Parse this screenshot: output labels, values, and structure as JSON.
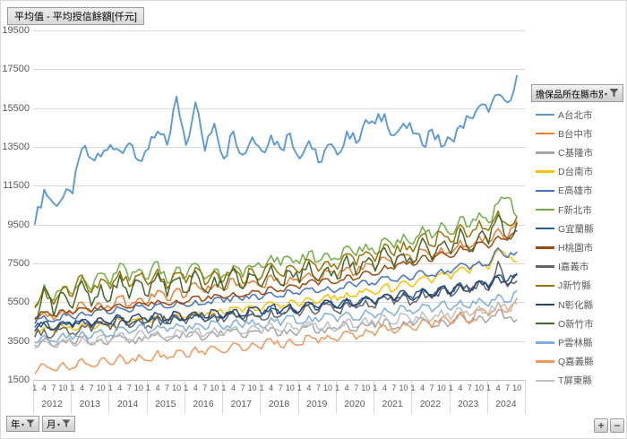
{
  "title_button": {
    "label": "平均值 - 平均授信餘額[仟元]"
  },
  "legend": {
    "filter_button_label": "擔保品所在縣市別"
  },
  "field_buttons": {
    "year_label": "年",
    "month_label": "月"
  },
  "detail_buttons": {
    "plus_label": "+",
    "minus_label": "−"
  },
  "colors": {
    "grid": "#d9d9d9",
    "axis": "#bfbfbf",
    "labels": "#595959"
  },
  "chart_data": {
    "type": "line",
    "title": "平均值 - 平均授信餘額[仟元]",
    "ylabel": "平均授信餘額[仟元]",
    "ylim": [
      1500,
      19500
    ],
    "ytick_step": 2000,
    "grid": true,
    "legend_position": "right",
    "x": {
      "years": [
        2012,
        2013,
        2014,
        2015,
        2016,
        2017,
        2018,
        2019,
        2020,
        2021,
        2022,
        2023,
        2024
      ],
      "month_ticks": [
        1,
        4,
        7,
        10
      ],
      "note": "values sampled at months 1,4,7,10 of each year"
    },
    "series": [
      {
        "name": "A台北市",
        "color": "#5B9BD5",
        "jitter": 420,
        "values": [
          9500,
          11300,
          10600,
          10900,
          11100,
          13400,
          12900,
          13000,
          13600,
          13300,
          13700,
          12800,
          13400,
          14300,
          13600,
          16100,
          13600,
          15800,
          13300,
          14700,
          12900,
          14300,
          13100,
          14000,
          13300,
          14100,
          13400,
          14200,
          12900,
          13800,
          12700,
          13600,
          13100,
          14300,
          13700,
          14900,
          14700,
          15200,
          14100,
          14700,
          14200,
          13600,
          14400,
          13500,
          13900,
          14600,
          15000,
          15600,
          15300,
          16200,
          15800,
          17200
        ]
      },
      {
        "name": "B台中市",
        "color": "#ED7D31",
        "jitter": 280,
        "values": [
          4400,
          5000,
          4600,
          5100,
          4900,
          5500,
          5000,
          5400,
          5200,
          5800,
          5300,
          5700,
          5500,
          6100,
          5600,
          6200,
          5800,
          6500,
          6000,
          6400,
          6100,
          6700,
          6200,
          6600,
          6300,
          6900,
          6400,
          6800,
          6500,
          7000,
          6600,
          7100,
          6800,
          7300,
          7000,
          7500,
          7200,
          7800,
          7400,
          7900,
          7600,
          8200,
          7800,
          8300,
          8000,
          8700,
          8300,
          8900,
          8600,
          9300,
          8800,
          9700
        ]
      },
      {
        "name": "C基隆市",
        "color": "#A5A5A5",
        "jitter": 280,
        "values": [
          3300,
          3600,
          3200,
          3500,
          3400,
          3700,
          3300,
          3600,
          3500,
          3800,
          3400,
          3700,
          3600,
          3900,
          3500,
          3800,
          3700,
          4000,
          3600,
          3900,
          3800,
          4100,
          3700,
          4000,
          3900,
          4200,
          3800,
          4100,
          4000,
          4300,
          3900,
          4200,
          4100,
          4400,
          4000,
          4300,
          4200,
          4600,
          4100,
          4500,
          4300,
          4700,
          4200,
          4600,
          4400,
          4900,
          4400,
          4800,
          4600,
          5100,
          4700,
          4600
        ]
      },
      {
        "name": "D台南市",
        "color": "#FFC000",
        "jitter": 200,
        "values": [
          3900,
          4200,
          4000,
          4300,
          4100,
          4400,
          4200,
          4500,
          4300,
          4600,
          4400,
          4700,
          4500,
          4800,
          4600,
          4900,
          4700,
          5000,
          4800,
          5100,
          4900,
          5200,
          5000,
          5300,
          5100,
          5500,
          5200,
          5600,
          5300,
          5700,
          5500,
          5900,
          5600,
          6000,
          5800,
          6200,
          5900,
          6400,
          6100,
          6600,
          6300,
          6800,
          6500,
          7000,
          6700,
          7300,
          7000,
          7600,
          7200,
          8200,
          7800,
          7600
        ]
      },
      {
        "name": "E高雄市",
        "color": "#4472C4",
        "jitter": 200,
        "values": [
          4400,
          4800,
          4500,
          4900,
          4700,
          5000,
          4800,
          5100,
          4900,
          5200,
          5000,
          5300,
          5100,
          5400,
          5200,
          5500,
          5300,
          5600,
          5400,
          5700,
          5500,
          5800,
          5600,
          5900,
          5700,
          6000,
          5800,
          6100,
          5900,
          6200,
          6000,
          6300,
          6100,
          6500,
          6300,
          6600,
          6400,
          6800,
          6600,
          6900,
          6700,
          7100,
          6900,
          7200,
          7000,
          7500,
          7200,
          7600,
          7400,
          8300,
          7800,
          8100
        ]
      },
      {
        "name": "F新北市",
        "color": "#70AD47",
        "jitter": 330,
        "values": [
          5300,
          6400,
          5600,
          6200,
          5900,
          6800,
          6100,
          7000,
          6400,
          7500,
          6600,
          7200,
          6700,
          7600,
          6500,
          7300,
          6800,
          7500,
          6700,
          7200,
          6900,
          7400,
          6800,
          7300,
          7300,
          7900,
          7400,
          7800,
          7500,
          8100,
          7600,
          8000,
          7700,
          8400,
          7900,
          8500,
          8000,
          8800,
          8300,
          9000,
          8500,
          9400,
          8800,
          9600,
          9000,
          9900,
          9400,
          10100,
          9600,
          10600,
          10900,
          9900
        ]
      },
      {
        "name": "G宜蘭縣",
        "color": "#255E91",
        "jitter": 220,
        "values": [
          4200,
          4500,
          4100,
          4400,
          4300,
          4600,
          4200,
          4500,
          4400,
          4700,
          4300,
          4600,
          4500,
          4800,
          4400,
          4700,
          4600,
          4900,
          4500,
          4800,
          4700,
          5000,
          4600,
          4900,
          4800,
          5200,
          4900,
          5300,
          5000,
          5400,
          5100,
          5500,
          5200,
          5600,
          5300,
          5700,
          5400,
          5900,
          5600,
          6000,
          5700,
          6200,
          5900,
          6300,
          6000,
          6500,
          6200,
          6600,
          6300,
          6900,
          6600,
          7000
        ]
      },
      {
        "name": "H桃園市",
        "color": "#9E480E",
        "jitter": 150,
        "values": [
          4700,
          5000,
          4800,
          5100,
          4900,
          5200,
          5000,
          5300,
          5100,
          5400,
          5200,
          5500,
          5300,
          5600,
          5400,
          5600,
          5500,
          5800,
          5600,
          5900,
          5700,
          6000,
          5800,
          6100,
          5900,
          6300,
          6100,
          6400,
          6200,
          6600,
          6400,
          6700,
          6500,
          6900,
          6700,
          7100,
          6900,
          7400,
          7200,
          7600,
          7400,
          7900,
          7600,
          8100,
          7800,
          8400,
          8100,
          8600,
          8300,
          8900,
          8700,
          9200
        ]
      },
      {
        "name": "I嘉義市",
        "color": "#636363",
        "jitter": 320,
        "values": [
          3700,
          4100,
          3800,
          4200,
          3900,
          4300,
          4000,
          4400,
          4100,
          4500,
          4200,
          4600,
          4300,
          4700,
          4400,
          4800,
          4400,
          4800,
          4500,
          4900,
          4500,
          4900,
          4600,
          5000,
          4600,
          5100,
          4800,
          5200,
          4800,
          5300,
          5000,
          5400,
          5000,
          5500,
          5200,
          5600,
          5200,
          5800,
          5400,
          5900,
          5500,
          6100,
          5700,
          6200,
          5800,
          6400,
          6000,
          6600,
          6100,
          7600,
          6300,
          6600
        ]
      },
      {
        "name": "J新竹縣",
        "color": "#997300",
        "jitter": 330,
        "values": [
          5200,
          6200,
          5400,
          6300,
          5800,
          6900,
          6000,
          6700,
          6200,
          7100,
          6300,
          6900,
          6400,
          7200,
          6200,
          7000,
          6500,
          7300,
          6400,
          7100,
          6600,
          7300,
          6500,
          7200,
          6800,
          7500,
          6900,
          7400,
          7000,
          7700,
          7100,
          7600,
          7200,
          8000,
          7400,
          8100,
          7600,
          8500,
          7900,
          8600,
          8100,
          9000,
          8400,
          9100,
          8600,
          9500,
          8900,
          9700,
          9200,
          10200,
          9500,
          9900
        ]
      },
      {
        "name": "N彰化縣",
        "color": "#264478",
        "jitter": 220,
        "values": [
          4000,
          4400,
          4100,
          4500,
          4200,
          4600,
          4300,
          4700,
          4400,
          4800,
          4500,
          4900,
          4500,
          4900,
          4600,
          5000,
          4600,
          5000,
          4700,
          5100,
          4700,
          5100,
          4800,
          5200,
          4900,
          5300,
          5000,
          5400,
          5000,
          5500,
          5200,
          5600,
          5200,
          5700,
          5400,
          5800,
          5400,
          5900,
          5600,
          6100,
          5600,
          6200,
          5800,
          6300,
          5900,
          6400,
          6100,
          6600,
          6200,
          6800,
          6400,
          6900
        ]
      },
      {
        "name": "O新竹市",
        "color": "#43682B",
        "jitter": 420,
        "values": [
          4600,
          6300,
          4800,
          6000,
          5200,
          6600,
          5300,
          6400,
          5600,
          6900,
          5700,
          6600,
          5800,
          7000,
          5800,
          6700,
          6000,
          7100,
          6100,
          6800,
          6100,
          7200,
          6200,
          6900,
          6300,
          7400,
          6400,
          7100,
          6500,
          7600,
          6600,
          7300,
          6700,
          7900,
          6900,
          7600,
          7100,
          8300,
          7300,
          8000,
          7500,
          8800,
          7700,
          8500,
          8000,
          9300,
          8200,
          9000,
          8500,
          10000,
          8800,
          9600
        ]
      },
      {
        "name": "P雲林縣",
        "color": "#7CAFDD",
        "jitter": 230,
        "values": [
          3400,
          3800,
          3500,
          3900,
          3600,
          4000,
          3700,
          4100,
          3800,
          4200,
          3900,
          4300,
          3900,
          4300,
          4000,
          4400,
          4000,
          4400,
          4100,
          4500,
          4100,
          4500,
          4200,
          4600,
          4200,
          4700,
          4300,
          4800,
          4400,
          4800,
          4500,
          4900,
          4500,
          5000,
          4600,
          5100,
          4700,
          5200,
          4800,
          5300,
          4900,
          5400,
          5000,
          5500,
          5100,
          5600,
          5200,
          5700,
          5300,
          5900,
          5500,
          6100
        ]
      },
      {
        "name": "Q嘉義縣",
        "color": "#F1975A",
        "jitter": 230,
        "values": [
          1800,
          2300,
          2000,
          2400,
          2100,
          2600,
          2200,
          2600,
          2300,
          2800,
          2400,
          2800,
          2500,
          3000,
          2600,
          3000,
          2700,
          3200,
          2800,
          3200,
          2900,
          3400,
          3000,
          3400,
          3100,
          3600,
          3200,
          3600,
          3300,
          3800,
          3400,
          3800,
          3500,
          4000,
          3600,
          4100,
          3800,
          4300,
          3900,
          4400,
          4100,
          4600,
          4200,
          4700,
          4400,
          5000,
          4500,
          5100,
          4800,
          5500,
          5000,
          5700
        ]
      },
      {
        "name": "T屏東縣",
        "color": "#BFBFBF",
        "jitter": 260,
        "values": [
          3100,
          3500,
          3200,
          3600,
          3300,
          3700,
          3400,
          3800,
          3500,
          3900,
          3600,
          4000,
          3600,
          4000,
          3700,
          4100,
          3700,
          4100,
          3800,
          4200,
          3800,
          4200,
          3900,
          4300,
          3900,
          4400,
          4000,
          4400,
          4000,
          4500,
          4100,
          4500,
          4100,
          4600,
          4200,
          4700,
          4300,
          4800,
          4400,
          4900,
          4400,
          5000,
          4600,
          5100,
          4600,
          5200,
          4800,
          5300,
          4900,
          5500,
          5100,
          5400
        ]
      }
    ]
  }
}
